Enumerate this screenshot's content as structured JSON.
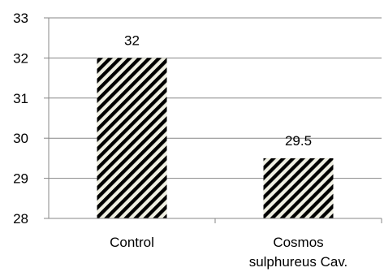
{
  "chart_data": {
    "type": "bar",
    "categories": [
      [
        "Control"
      ],
      [
        "Cosmos",
        "sulphureus Cav."
      ]
    ],
    "values": [
      32,
      29.5
    ],
    "data_labels": [
      "32",
      "29.5"
    ],
    "yticks": [
      "28",
      "29",
      "30",
      "31",
      "32",
      "33"
    ],
    "ylim": [
      28,
      33
    ],
    "grid": "horizontal",
    "legend": "none",
    "bar_fill": "diagonal-stripes",
    "colors": {
      "stripe_dark": "#000000",
      "stripe_light": "#efefe2",
      "grid": "#878787",
      "axis": "#878787"
    }
  }
}
